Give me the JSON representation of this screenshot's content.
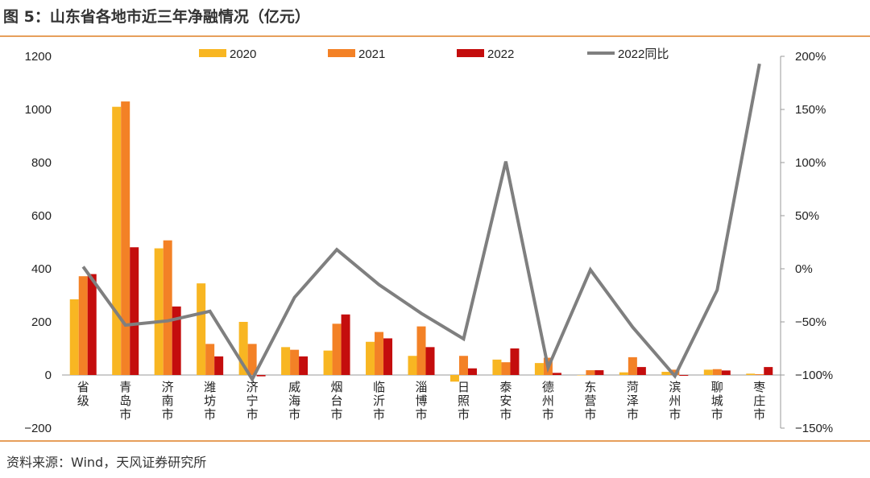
{
  "header": {
    "title": "图 5：山东省各地市近三年净融情况（亿元）"
  },
  "footer": {
    "source": "资料来源：Wind，天风证券研究所"
  },
  "colors": {
    "s2020": "#f8b622",
    "s2021": "#f38126",
    "s2022": "#c40d0d",
    "yoy": "#7f7f7f",
    "accent_rule": "#e79f5b",
    "axis": "#999999"
  },
  "chart_data": {
    "type": "bar",
    "title": "",
    "xlabel": "",
    "ylabel": "",
    "categories": [
      "省级",
      "青岛市",
      "济南市",
      "潍坊市",
      "济宁市",
      "威海市",
      "烟台市",
      "临沂市",
      "淄博市",
      "日照市",
      "泰安市",
      "德州市",
      "东营市",
      "菏泽市",
      "滨州市",
      "聊城市",
      "枣庄市"
    ],
    "series": [
      {
        "name": "2020",
        "kind": "bar",
        "axis": "left",
        "values": [
          285,
          1010,
          477,
          345,
          200,
          105,
          92,
          125,
          72,
          -25,
          58,
          45,
          0,
          10,
          12,
          20,
          5
        ]
      },
      {
        "name": "2021",
        "kind": "bar",
        "axis": "left",
        "values": [
          372,
          1030,
          507,
          117,
          117,
          95,
          193,
          162,
          183,
          72,
          48,
          65,
          18,
          67,
          20,
          22,
          3
        ]
      },
      {
        "name": "2022",
        "kind": "bar",
        "axis": "left",
        "values": [
          380,
          481,
          258,
          70,
          -5,
          70,
          228,
          138,
          105,
          25,
          100,
          8,
          18,
          30,
          -3,
          17,
          30
        ]
      },
      {
        "name": "2022同比",
        "kind": "line",
        "axis": "right",
        "values": [
          2,
          -53,
          -49,
          -40,
          -104,
          -27,
          18,
          -15,
          -42,
          -66,
          101,
          -93,
          -1,
          -55,
          -101,
          -20,
          193
        ]
      }
    ],
    "ylim": [
      -200,
      1200
    ],
    "yticks": [
      "−200",
      "0",
      "200",
      "400",
      "600",
      "800",
      "1000",
      "1200"
    ],
    "ylim_right": [
      -150,
      200
    ],
    "yticks_right": [
      "−150%",
      "−100%",
      "−50%",
      "0%",
      "50%",
      "100%",
      "150%",
      "200%"
    ],
    "legend_position": "top",
    "grid": false
  }
}
